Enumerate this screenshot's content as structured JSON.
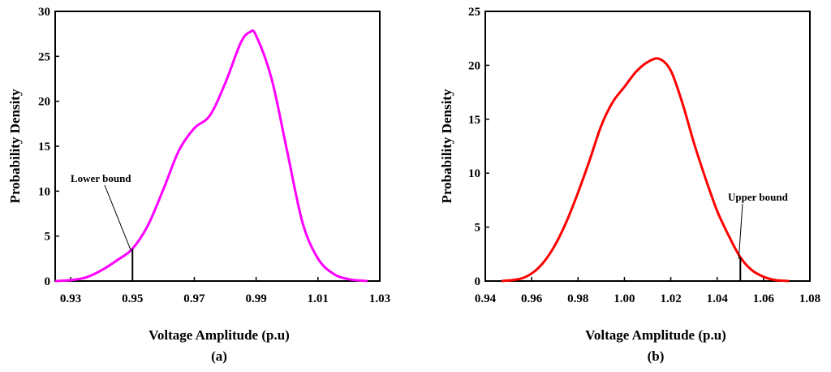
{
  "chart_data": [
    {
      "type": "line",
      "panel_label": "(a)",
      "xlabel": "Voltage Amplitude (p.u)",
      "ylabel": "Probability Density",
      "xlim": [
        0.925,
        1.03
      ],
      "ylim": [
        0,
        30
      ],
      "xticks": [
        0.93,
        0.95,
        0.97,
        0.99,
        1.01,
        1.03
      ],
      "xtick_labels": [
        "0.93",
        "0.95",
        "0.97",
        "0.99",
        "1.01",
        "1.03"
      ],
      "yticks": [
        0,
        5,
        10,
        15,
        20,
        25,
        30
      ],
      "ytick_labels": [
        "0",
        "5",
        "10",
        "15",
        "20",
        "25",
        "30"
      ],
      "series": [
        {
          "name": "pdf",
          "color": "#ff00ff",
          "x": [
            0.925,
            0.93,
            0.935,
            0.94,
            0.945,
            0.95,
            0.955,
            0.96,
            0.965,
            0.97,
            0.975,
            0.98,
            0.985,
            0.988,
            0.99,
            0.995,
            1.0,
            1.005,
            1.01,
            1.015,
            1.02,
            1.026
          ],
          "y": [
            0,
            0.1,
            0.4,
            1.2,
            2.3,
            3.6,
            6.2,
            10.2,
            14.5,
            17.0,
            18.4,
            22.0,
            26.5,
            27.7,
            27.3,
            22.5,
            14.5,
            6.5,
            2.5,
            0.8,
            0.2,
            0
          ]
        }
      ],
      "annotation": {
        "text": "Lower bound",
        "x": 0.95
      },
      "bound_value_y": 3.6
    },
    {
      "type": "line",
      "panel_label": "(b)",
      "xlabel": "Voltage Amplitude (p.u)",
      "ylabel": "Probability Density",
      "xlim": [
        0.94,
        1.08
      ],
      "ylim": [
        0,
        25
      ],
      "xticks": [
        0.94,
        0.96,
        0.98,
        1.0,
        1.02,
        1.04,
        1.06,
        1.08
      ],
      "xtick_labels": [
        "0.94",
        "0.96",
        "0.98",
        "1.00",
        "1.02",
        "1.04",
        "1.06",
        "1.08"
      ],
      "yticks": [
        0,
        5,
        10,
        15,
        20,
        25
      ],
      "ytick_labels": [
        "0",
        "5",
        "10",
        "15",
        "20",
        "25"
      ],
      "series": [
        {
          "name": "pdf",
          "color": "#ff0000",
          "x": [
            0.947,
            0.955,
            0.96,
            0.965,
            0.97,
            0.975,
            0.98,
            0.985,
            0.99,
            0.995,
            1.0,
            1.005,
            1.01,
            1.015,
            1.02,
            1.025,
            1.03,
            1.035,
            1.04,
            1.045,
            1.05,
            1.055,
            1.06,
            1.065,
            1.071
          ],
          "y": [
            0,
            0.2,
            0.7,
            1.7,
            3.3,
            5.5,
            8.2,
            11.2,
            14.4,
            16.6,
            18.0,
            19.4,
            20.3,
            20.6,
            19.5,
            16.5,
            12.8,
            9.5,
            6.5,
            4.2,
            2.2,
            1.0,
            0.4,
            0.1,
            0
          ]
        }
      ],
      "annotation": {
        "text": "Upper bound",
        "x": 1.05
      },
      "bound_value_y": 2.2
    }
  ]
}
